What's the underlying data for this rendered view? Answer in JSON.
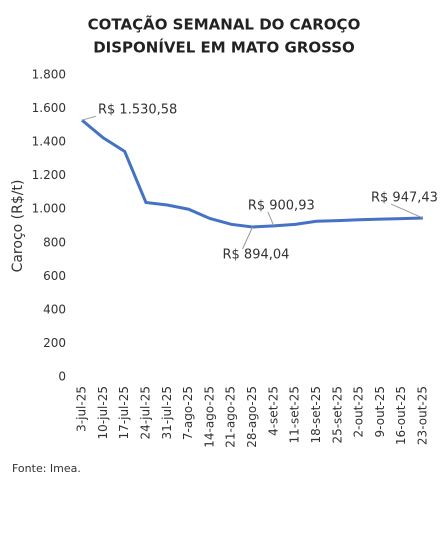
{
  "chart_data": {
    "type": "line",
    "title": [
      "COTAÇÃO SEMANAL DO CAROÇO",
      "DISPONÍVEL EM MATO GROSSO"
    ],
    "y_label": "Caroço (R$/t)",
    "source": "Fonte: Imea.",
    "categories": [
      "3-jul-25",
      "10-jul-25",
      "17-jul-25",
      "24-jul-25",
      "31-jul-25",
      "7-ago-25",
      "14-ago-25",
      "21-ago-25",
      "28-ago-25",
      "4-set-25",
      "11-set-25",
      "18-set-25",
      "25-set-25",
      "2-out-25",
      "9-out-25",
      "16-out-25",
      "23-out-25"
    ],
    "series": [
      {
        "name": "Caroço",
        "color": "#4472c4",
        "values": [
          1530.58,
          1425,
          1345,
          1040,
          1025,
          1000,
          945,
          910,
          894.04,
          900.93,
          910,
          928,
          932,
          937,
          941,
          944,
          947.43
        ],
        "value_labels": [
          "R$ 1.530,58",
          null,
          null,
          null,
          null,
          null,
          null,
          null,
          "R$ 894,04",
          "R$ 900,93",
          null,
          null,
          null,
          null,
          null,
          null,
          "R$ 947,43"
        ]
      }
    ],
    "ylim": [
      0,
      1800
    ],
    "yticks": [
      0,
      200,
      400,
      600,
      800,
      {
        "value": 1000,
        "label": "1.000"
      },
      {
        "value": 1200,
        "label": "1.200"
      },
      {
        "value": 1400,
        "label": "1.400"
      },
      {
        "value": 1600,
        "label": "1.600"
      },
      {
        "value": 1800,
        "label": "1.800"
      }
    ],
    "grid": false
  }
}
